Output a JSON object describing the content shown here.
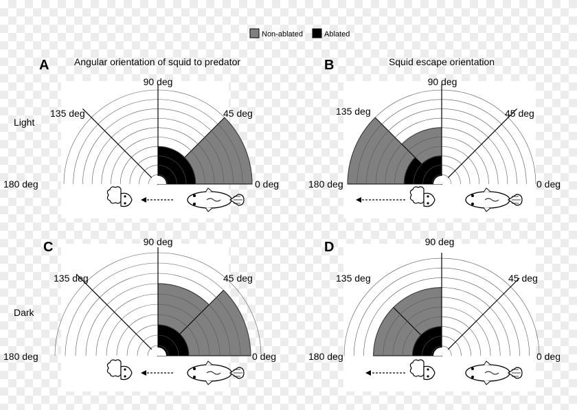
{
  "legend": [
    {
      "label": "Non-ablated",
      "color": "#808080"
    },
    {
      "label": "Ablated",
      "color": "#000000"
    }
  ],
  "rows": {
    "light": "Light",
    "dark": "Dark"
  },
  "angle_labels": {
    "deg0": "0 deg",
    "deg45": "45 deg",
    "deg90": "90 deg",
    "deg135": "135 deg",
    "deg180": "180 deg"
  },
  "chart_data": [
    {
      "panel": "A",
      "title": "Angular orientation of squid to predator",
      "row": "Light",
      "type": "rose",
      "theta_range_deg": [
        0,
        180
      ],
      "rings": 10,
      "dashed_line_deg": 135,
      "series": [
        {
          "name": "Non-ablated",
          "sectors": [
            {
              "from_deg": 0,
              "to_deg": 45,
              "value": 10
            },
            {
              "from_deg": 45,
              "to_deg": 90,
              "value": 3
            }
          ]
        },
        {
          "name": "Ablated",
          "sectors": [
            {
              "from_deg": 0,
              "to_deg": 45,
              "value": 4
            },
            {
              "from_deg": 45,
              "to_deg": 90,
              "value": 4
            }
          ]
        }
      ],
      "arrow": "to-left",
      "squid_side": "left"
    },
    {
      "panel": "B",
      "title": "Squid escape orientation",
      "row": "Light",
      "type": "rose",
      "theta_range_deg": [
        0,
        180
      ],
      "rings": 10,
      "dashed_line_deg": 45,
      "series": [
        {
          "name": "Non-ablated",
          "sectors": [
            {
              "from_deg": 90,
              "to_deg": 135,
              "value": 6
            },
            {
              "from_deg": 135,
              "to_deg": 180,
              "value": 10
            }
          ]
        },
        {
          "name": "Ablated",
          "sectors": [
            {
              "from_deg": 90,
              "to_deg": 135,
              "value": 3
            },
            {
              "from_deg": 135,
              "to_deg": 180,
              "value": 4
            }
          ]
        }
      ],
      "arrow": "to-left",
      "squid_side": "right"
    },
    {
      "panel": "C",
      "title": "",
      "row": "Dark",
      "type": "rose",
      "theta_range_deg": [
        0,
        180
      ],
      "rings": 10,
      "dashed_line_deg": 135,
      "series": [
        {
          "name": "Non-ablated",
          "sectors": [
            {
              "from_deg": 0,
              "to_deg": 45,
              "value": 9
            },
            {
              "from_deg": 45,
              "to_deg": 90,
              "value": 7
            }
          ]
        },
        {
          "name": "Ablated",
          "sectors": [
            {
              "from_deg": 0,
              "to_deg": 45,
              "value": 3
            },
            {
              "from_deg": 45,
              "to_deg": 90,
              "value": 3
            }
          ]
        }
      ],
      "arrow": "to-left",
      "squid_side": "left"
    },
    {
      "panel": "D",
      "title": "",
      "row": "Dark",
      "type": "rose",
      "theta_range_deg": [
        0,
        180
      ],
      "rings": 10,
      "dashed_line_deg": 45,
      "series": [
        {
          "name": "Non-ablated",
          "sectors": [
            {
              "from_deg": 90,
              "to_deg": 135,
              "value": 7
            },
            {
              "from_deg": 135,
              "to_deg": 180,
              "value": 7
            }
          ]
        },
        {
          "name": "Ablated",
          "sectors": [
            {
              "from_deg": 90,
              "to_deg": 135,
              "value": 3
            },
            {
              "from_deg": 135,
              "to_deg": 180,
              "value": 3
            }
          ]
        }
      ],
      "arrow": "to-left",
      "squid_side": "right"
    }
  ]
}
